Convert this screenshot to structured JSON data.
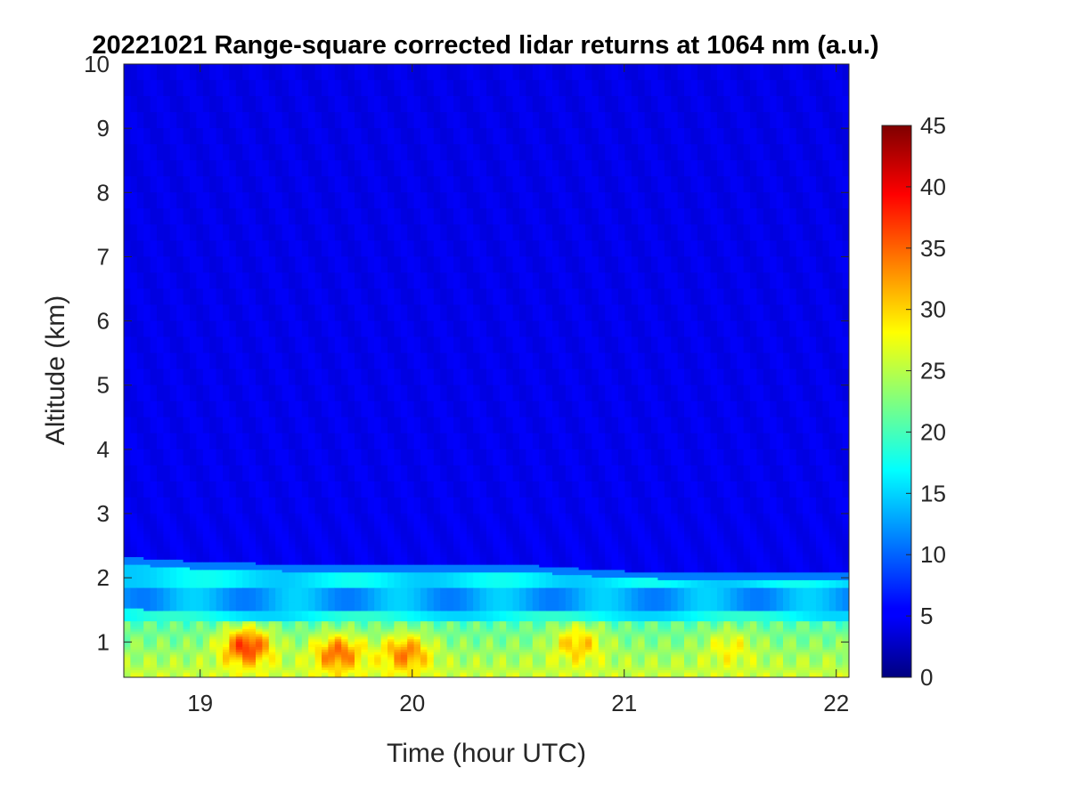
{
  "chart_data": {
    "type": "heatmap",
    "title": "20221021  Range-square corrected lidar returns at 1064 nm (a.u.)",
    "xlabel": "Time (hour UTC)",
    "ylabel": "Altitude (km)",
    "xlim": [
      18.64,
      22.06
    ],
    "ylim": [
      0.45,
      10
    ],
    "x_ticks": [
      "19",
      "20",
      "21",
      "22"
    ],
    "y_ticks": [
      "1",
      "2",
      "3",
      "4",
      "5",
      "6",
      "7",
      "8",
      "9",
      "10"
    ],
    "colorbar": {
      "range": [
        0,
        45
      ],
      "ticks": [
        "0",
        "5",
        "10",
        "15",
        "20",
        "25",
        "30",
        "35",
        "40",
        "45"
      ],
      "colormap": "jet"
    },
    "features": {
      "free_troposphere_value": 5,
      "boundary_layer_top_km": {
        "x": [
          18.64,
          19.0,
          19.5,
          20.0,
          20.5,
          21.0,
          21.5,
          22.06
        ],
        "y": [
          2.28,
          2.2,
          2.16,
          2.17,
          2.16,
          2.06,
          2.03,
          2.02
        ]
      },
      "residual_layer_value": 16,
      "near_surface_value": 26,
      "aerosol_cores": [
        {
          "x_center": 19.22,
          "alt_center_km": 0.95,
          "peak_value": 40
        },
        {
          "x_center": 19.65,
          "alt_center_km": 0.85,
          "peak_value": 37
        },
        {
          "x_center": 19.97,
          "alt_center_km": 0.85,
          "peak_value": 36
        },
        {
          "x_center": 20.78,
          "alt_center_km": 1.0,
          "peak_value": 34
        },
        {
          "x_center": 21.5,
          "alt_center_km": 0.95,
          "peak_value": 31
        }
      ]
    }
  }
}
